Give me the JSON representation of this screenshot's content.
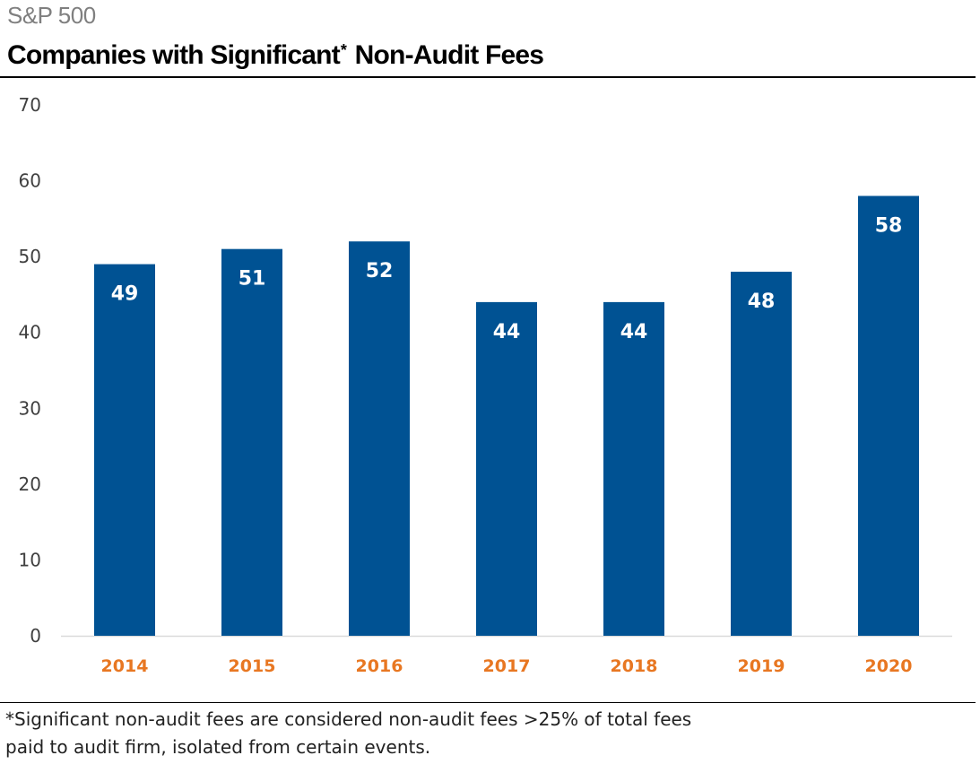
{
  "header": {
    "supertitle": "S&P 500",
    "title_main": "Companies with Significant",
    "title_sup": "*",
    "title_rest": "Non-Audit Fees"
  },
  "footnote": "*Significant non-audit fees are considered non-audit fees >25% of total fees paid to audit firm, isolated from certain events.",
  "colors": {
    "bar": "#005293",
    "category_label": "#e87722",
    "data_label": "#ffffff",
    "axis_label": "#404040",
    "axis_line": "#d9d9d9"
  },
  "chart_data": {
    "type": "bar",
    "categories": [
      "2014",
      "2015",
      "2016",
      "2017",
      "2018",
      "2019",
      "2020"
    ],
    "values": [
      49,
      51,
      52,
      44,
      44,
      48,
      58
    ],
    "data_labels": [
      "49",
      "51",
      "52",
      "44",
      "44",
      "48",
      "58"
    ],
    "yticks": [
      "0",
      "10",
      "20",
      "30",
      "40",
      "50",
      "60",
      "70"
    ],
    "ylim": [
      0,
      70
    ],
    "grid": false,
    "legend": "none"
  }
}
